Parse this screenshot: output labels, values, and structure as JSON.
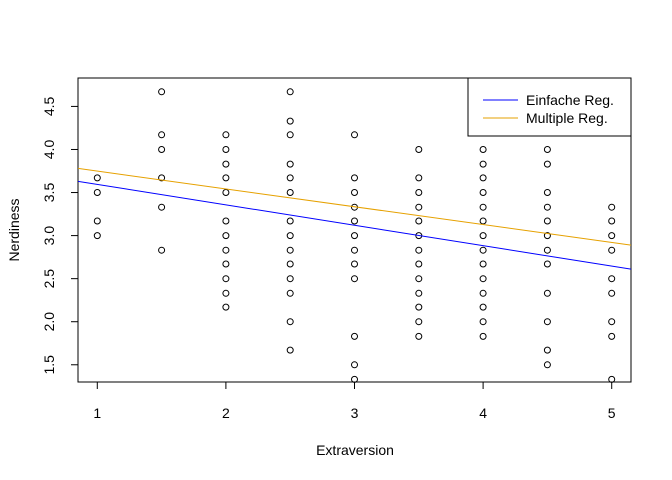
{
  "chart_data": {
    "type": "scatter",
    "title": "",
    "xlabel": "Extraversion",
    "ylabel": "Nerdiness",
    "xlim": [
      0.85,
      5.15
    ],
    "ylim": [
      1.3,
      4.83
    ],
    "x_ticks": [
      "1",
      "2",
      "3",
      "4",
      "5"
    ],
    "y_ticks": [
      "1.5",
      "2.0",
      "2.5",
      "3.0",
      "3.5",
      "4.0",
      "4.5"
    ],
    "grid": false,
    "legend_position": "top-right",
    "points": [
      [
        1,
        3.0
      ],
      [
        1,
        3.17
      ],
      [
        1,
        3.5
      ],
      [
        1,
        3.67
      ],
      [
        1.5,
        2.83
      ],
      [
        1.5,
        3.33
      ],
      [
        1.5,
        3.67
      ],
      [
        1.5,
        4.0
      ],
      [
        1.5,
        4.17
      ],
      [
        1.5,
        4.67
      ],
      [
        2,
        2.17
      ],
      [
        2,
        2.33
      ],
      [
        2,
        2.5
      ],
      [
        2,
        2.67
      ],
      [
        2,
        2.83
      ],
      [
        2,
        3.0
      ],
      [
        2,
        3.17
      ],
      [
        2,
        3.5
      ],
      [
        2,
        3.67
      ],
      [
        2,
        3.83
      ],
      [
        2,
        4.0
      ],
      [
        2,
        4.17
      ],
      [
        2.5,
        1.67
      ],
      [
        2.5,
        2.0
      ],
      [
        2.5,
        2.33
      ],
      [
        2.5,
        2.5
      ],
      [
        2.5,
        2.67
      ],
      [
        2.5,
        2.83
      ],
      [
        2.5,
        3.0
      ],
      [
        2.5,
        3.17
      ],
      [
        2.5,
        3.5
      ],
      [
        2.5,
        3.67
      ],
      [
        2.5,
        3.83
      ],
      [
        2.5,
        4.17
      ],
      [
        2.5,
        4.33
      ],
      [
        2.5,
        4.67
      ],
      [
        3,
        1.33
      ],
      [
        3,
        1.5
      ],
      [
        3,
        1.83
      ],
      [
        3,
        2.5
      ],
      [
        3,
        2.67
      ],
      [
        3,
        2.83
      ],
      [
        3,
        3.0
      ],
      [
        3,
        3.17
      ],
      [
        3,
        3.33
      ],
      [
        3,
        3.5
      ],
      [
        3,
        3.67
      ],
      [
        3,
        4.17
      ],
      [
        3.5,
        1.83
      ],
      [
        3.5,
        2.0
      ],
      [
        3.5,
        2.17
      ],
      [
        3.5,
        2.33
      ],
      [
        3.5,
        2.5
      ],
      [
        3.5,
        2.67
      ],
      [
        3.5,
        2.83
      ],
      [
        3.5,
        3.0
      ],
      [
        3.5,
        3.17
      ],
      [
        3.5,
        3.33
      ],
      [
        3.5,
        3.5
      ],
      [
        3.5,
        3.67
      ],
      [
        3.5,
        4.0
      ],
      [
        4,
        1.83
      ],
      [
        4,
        2.0
      ],
      [
        4,
        2.17
      ],
      [
        4,
        2.33
      ],
      [
        4,
        2.5
      ],
      [
        4,
        2.67
      ],
      [
        4,
        2.83
      ],
      [
        4,
        3.0
      ],
      [
        4,
        3.17
      ],
      [
        4,
        3.33
      ],
      [
        4,
        3.5
      ],
      [
        4,
        3.67
      ],
      [
        4,
        3.83
      ],
      [
        4,
        4.0
      ],
      [
        4.5,
        1.5
      ],
      [
        4.5,
        1.67
      ],
      [
        4.5,
        2.0
      ],
      [
        4.5,
        2.33
      ],
      [
        4.5,
        2.67
      ],
      [
        4.5,
        2.83
      ],
      [
        4.5,
        3.0
      ],
      [
        4.5,
        3.17
      ],
      [
        4.5,
        3.33
      ],
      [
        4.5,
        3.5
      ],
      [
        4.5,
        3.83
      ],
      [
        4.5,
        4.0
      ],
      [
        5,
        1.33
      ],
      [
        5,
        1.83
      ],
      [
        5,
        2.0
      ],
      [
        5,
        2.33
      ],
      [
        5,
        2.5
      ],
      [
        5,
        2.83
      ],
      [
        5,
        3.0
      ],
      [
        5,
        3.17
      ],
      [
        5,
        3.33
      ]
    ],
    "lines": [
      {
        "name": "Einfache Reg.",
        "color": "#0000ff",
        "x": [
          0.85,
          5.15
        ],
        "y": [
          3.63,
          2.61
        ]
      },
      {
        "name": "Multiple Reg.",
        "color": "#e6a100",
        "x": [
          0.85,
          5.15
        ],
        "y": [
          3.78,
          2.89
        ]
      }
    ]
  }
}
